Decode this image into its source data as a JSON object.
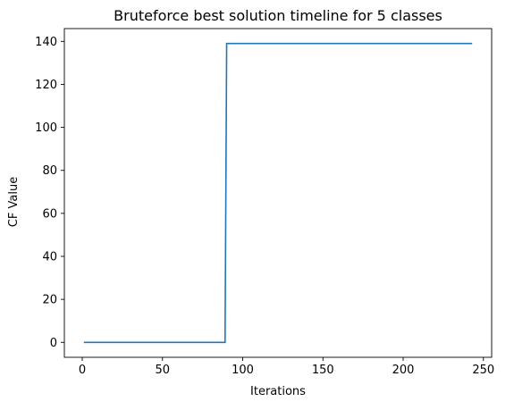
{
  "chart_data": {
    "type": "line",
    "title": "Bruteforce best solution timeline for 5 classes",
    "xlabel": "Iterations",
    "ylabel": "CF Value",
    "xlim": [
      -11.15,
      255.15
    ],
    "ylim": [
      -6.95,
      145.95
    ],
    "xticks": [
      0,
      50,
      100,
      150,
      200,
      250
    ],
    "yticks": [
      0,
      20,
      40,
      60,
      80,
      100,
      120,
      140
    ],
    "grid": false,
    "legend": null,
    "series": [
      {
        "color": "#1f77b4",
        "x": [
          1,
          89,
          90,
          243
        ],
        "y": [
          0,
          0,
          139,
          139
        ]
      }
    ]
  }
}
